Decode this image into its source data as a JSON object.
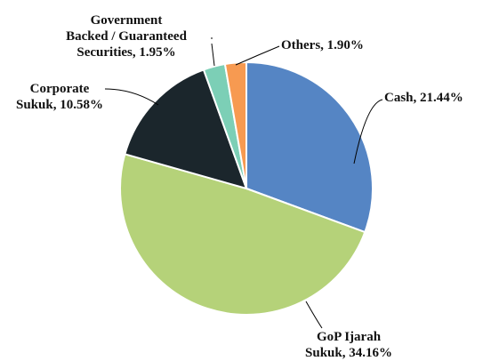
{
  "chart_data": {
    "type": "pie",
    "title": "",
    "slices": [
      {
        "name": "Cash",
        "label_lines": [
          "Cash, 21.44%"
        ],
        "value": 21.44,
        "color": "#5585c4"
      },
      {
        "name": "GoP Ijarah Sukuk",
        "label_lines": [
          "GoP Ijarah",
          "Sukuk, 34.16%"
        ],
        "value": 34.16,
        "color": "#b5d279"
      },
      {
        "name": "Corporate Sukuk",
        "label_lines": [
          "Corporate",
          "Sukuk, 10.58%"
        ],
        "value": 10.58,
        "color": "#1b262c"
      },
      {
        "name": "Government Backed / Guaranteed Securities",
        "label_lines": [
          "Government",
          "Backed / Guaranteed",
          "Securities, 1.95%"
        ],
        "value": 1.95,
        "color": "#7ccfb6"
      },
      {
        "name": "Others",
        "label_lines": [
          "Others, 1.90%"
        ],
        "value": 1.9,
        "color": "#f79a51"
      }
    ]
  }
}
